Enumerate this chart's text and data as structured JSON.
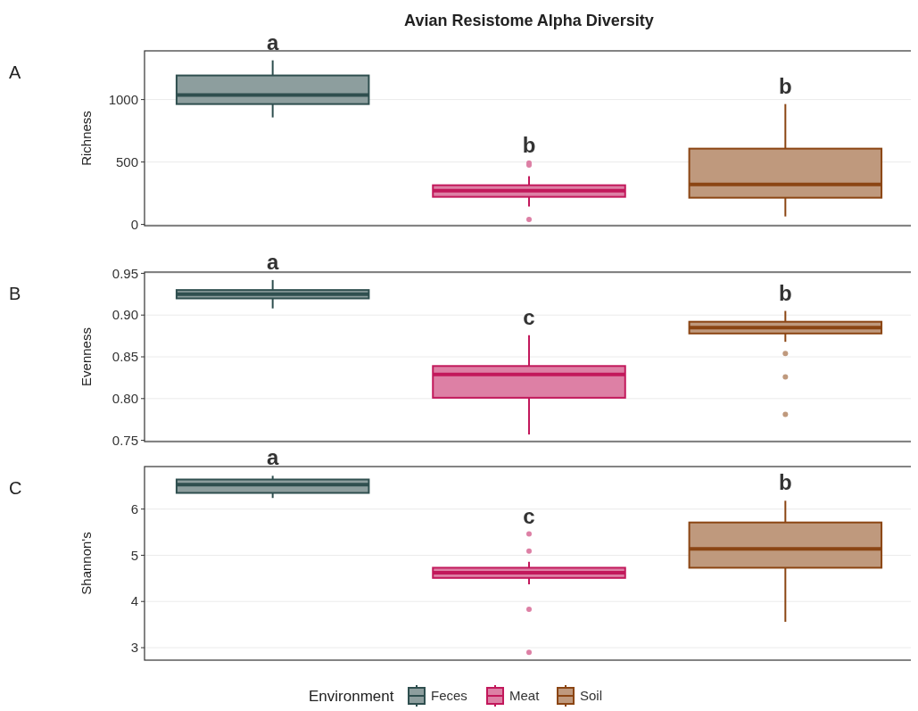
{
  "chart_data": [
    {
      "type": "box",
      "title": "Avian Resistome Alpha Diversity",
      "ylabel": "Richness",
      "categories": [
        null,
        null,
        null
      ],
      "ylim": [
        -10,
        1390
      ],
      "yticks": [
        0,
        500,
        1000
      ],
      "grid": "y",
      "tick_labels": "y",
      "annotations": [
        "A",
        "a",
        "b",
        "b"
      ],
      "series": [
        {
          "color": "#2f4f4f",
          "boxes": [
            {
              "low": 857,
              "q1": 964,
              "median": 1036,
              "q3": 1193,
              "high": 1314
            },
            null,
            null
          ]
        },
        {
          "color": "#c2185b",
          "boxes": [
            null,
            {
              "low": 143,
              "q1": 221,
              "median": 271,
              "q3": 314,
              "high": 386,
              "outliers": [
                492,
                476,
                40
              ]
            },
            null
          ]
        },
        {
          "color": "#8b4513",
          "boxes": [
            null,
            null,
            {
              "low": 64,
              "q1": 214,
              "median": 321,
              "q3": 607,
              "high": 964
            }
          ]
        }
      ]
    },
    {
      "type": "box",
      "ylabel": "Evenness",
      "categories": [
        null,
        null,
        null
      ],
      "ylim": [
        0.7485,
        0.9515
      ],
      "yticks": [
        {
          "value": 0.75,
          "label": "0.75"
        },
        {
          "value": 0.8,
          "label": "0.80"
        },
        {
          "value": 0.85,
          "label": "0.85"
        },
        {
          "value": 0.9,
          "label": "0.90"
        },
        {
          "value": 0.95,
          "label": "0.95"
        }
      ],
      "grid": "y",
      "tick_labels": "y",
      "annotations": [
        "B",
        "a",
        "c",
        "b"
      ],
      "series": [
        {
          "color": "#2f4f4f",
          "boxes": [
            {
              "low": 0.908,
              "q1": 0.92,
              "median": 0.925,
              "q3": 0.93,
              "high": 0.942
            },
            null,
            null
          ]
        },
        {
          "color": "#c2185b",
          "boxes": [
            null,
            {
              "low": 0.757,
              "q1": 0.801,
              "median": 0.829,
              "q3": 0.839,
              "high": 0.876
            },
            null
          ]
        },
        {
          "color": "#8b4513",
          "boxes": [
            null,
            null,
            {
              "low": 0.868,
              "q1": 0.878,
              "median": 0.885,
              "q3": 0.892,
              "high": 0.905,
              "outliers": [
                0.854,
                0.826,
                0.781
              ]
            }
          ]
        }
      ]
    },
    {
      "type": "box",
      "ylabel": "Shannon's",
      "categories": [
        null,
        null,
        null
      ],
      "ylim": [
        2.73,
        6.92
      ],
      "yticks": [
        3,
        4,
        5,
        6
      ],
      "grid": "y",
      "tick_labels": "y",
      "annotations": [
        "C",
        "a",
        "c",
        "b"
      ],
      "legend": "bottom",
      "legend_title": "Environment",
      "series": [
        {
          "name": "Feces",
          "color": "#2f4f4f",
          "boxes": [
            {
              "low": 6.24,
              "q1": 6.35,
              "median": 6.53,
              "q3": 6.64,
              "high": 6.72
            },
            null,
            null
          ]
        },
        {
          "name": "Meat",
          "color": "#c2185b",
          "boxes": [
            null,
            {
              "low": 4.37,
              "q1": 4.51,
              "median": 4.62,
              "q3": 4.73,
              "high": 4.86,
              "outliers": [
                5.46,
                5.09,
                3.83,
                2.9
              ]
            },
            null
          ]
        },
        {
          "name": "Soil",
          "color": "#8b4513",
          "boxes": [
            null,
            null,
            {
              "low": 3.56,
              "q1": 4.73,
              "median": 5.14,
              "q3": 5.71,
              "high": 6.18
            }
          ]
        }
      ]
    }
  ]
}
